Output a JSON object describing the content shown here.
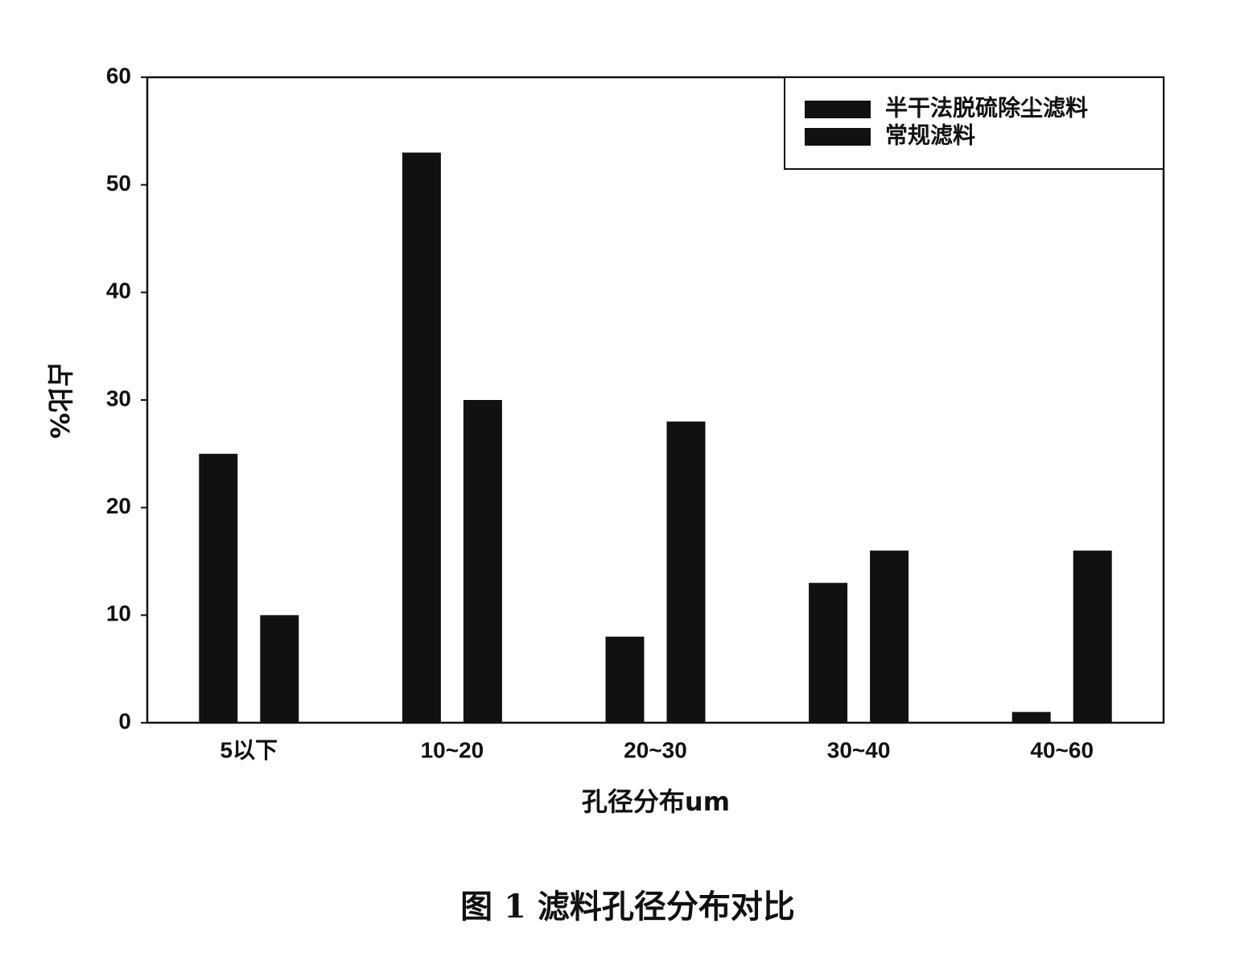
{
  "chart_data": {
    "type": "bar",
    "caption": "图 1  滤料孔径分布对比",
    "x_label": "孔径分布um",
    "y_label": "占比%",
    "categories": [
      "5以下",
      "10~20",
      "20~30",
      "30~40",
      "40~60"
    ],
    "series": [
      {
        "name": "半干法脱硫除尘滤料",
        "color": "#111111",
        "values": [
          25,
          53,
          8,
          13,
          1
        ]
      },
      {
        "name": "常规滤料",
        "color": "#111111",
        "values": [
          10,
          30,
          28,
          16,
          16
        ]
      }
    ],
    "ylim": [
      0,
      60
    ],
    "yticks": [
      0,
      10,
      20,
      30,
      40,
      50,
      60
    ],
    "legend": "upper right"
  }
}
